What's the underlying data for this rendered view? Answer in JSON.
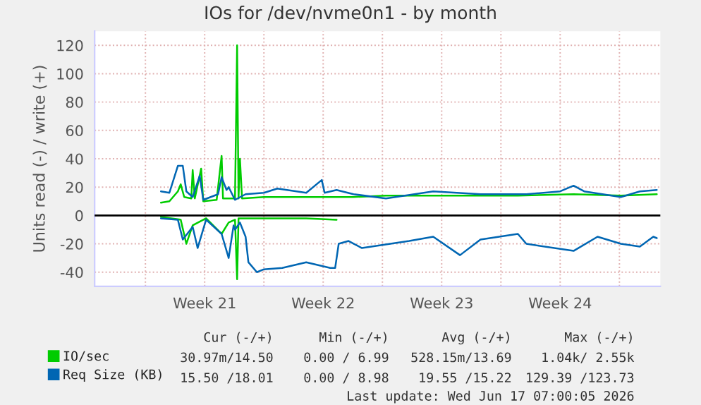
{
  "chart_data": {
    "type": "line",
    "title": "IOs for /dev/nvme0n1 - by month",
    "ylabel": "Units read (-) / write (+)",
    "xlim": [
      "2026-05-15",
      "2026-06-17T10:00"
    ],
    "xticks": [
      {
        "value": "2026-05-18",
        "label": null
      },
      {
        "value": "2026-05-21T12:00",
        "label": "Week 21"
      },
      {
        "value": "2026-05-25",
        "label": null
      },
      {
        "value": "2026-05-28T12:00",
        "label": "Week 22"
      },
      {
        "value": "2026-06-01",
        "label": null
      },
      {
        "value": "2026-06-04T12:00",
        "label": "Week 23"
      },
      {
        "value": "2026-06-08",
        "label": null
      },
      {
        "value": "2026-06-11T12:00",
        "label": "Week 24"
      },
      {
        "value": "2026-06-15",
        "label": null
      }
    ],
    "ylim": [
      -50,
      130
    ],
    "yticks": [
      -40,
      -20,
      0,
      20,
      40,
      60,
      80,
      100,
      120
    ],
    "grid": true,
    "legend": "bottom",
    "marker": "none",
    "line_style": "solid",
    "ref_lines": [
      {
        "axis": "y",
        "value": 0,
        "label": null,
        "color": "#000000"
      }
    ],
    "series": [
      {
        "name": "IO/sec",
        "color": "#00cc00",
        "x": [
          "2026-05-18T22:00",
          "2026-05-19T10:00",
          "2026-05-19T22:00",
          "2026-05-20T02:00",
          "2026-05-20T07:00",
          "2026-05-20T17:00",
          "2026-05-20T19:00",
          "2026-05-20T22:00",
          "2026-05-21T07:00",
          "2026-05-21T10:00",
          "2026-05-22T05:00",
          "2026-05-22T12:00",
          "2026-05-22T14:00",
          "2026-05-23T07:00",
          "2026-05-23T10:00",
          "2026-05-23T12:00",
          "2026-05-23T14:00",
          "2026-05-23T17:00",
          "2026-05-25T00:00",
          "2026-05-28T22:00",
          "2026-05-30T07:00",
          "2026-06-01T05:00",
          "2026-06-04T00:00",
          "2026-06-06T19:00",
          "2026-06-09T00:00",
          "2026-06-12T07:00",
          "2026-06-15T02:00",
          "2026-06-17T05:00"
        ],
        "values": [
          9,
          10,
          17,
          22,
          13,
          12,
          32,
          12,
          33,
          10,
          11,
          42,
          12,
          12,
          120,
          12,
          40,
          12,
          13,
          13,
          13,
          14,
          14,
          14,
          14,
          15,
          14,
          15
        ]
      },
      {
        "color": "#00cc00",
        "x": [
          "2026-05-18T22:00",
          "2026-05-20T02:00",
          "2026-05-20T10:00",
          "2026-05-20T19:00",
          "2026-05-21T14:00",
          "2026-05-22T12:00",
          "2026-05-22T22:00",
          "2026-05-23T07:00",
          "2026-05-23T10:00",
          "2026-05-23T12:00",
          "2026-05-25T00:00",
          "2026-05-27T12:00",
          "2026-05-29T07:00"
        ],
        "values": [
          -1,
          -3,
          -20,
          -7,
          -2,
          -13,
          -5,
          -3,
          -45,
          -2,
          -2,
          -2,
          -3
        ]
      },
      {
        "name": "Req Size (KB)",
        "color": "#0066b3",
        "x": [
          "2026-05-18T22:00",
          "2026-05-19T10:00",
          "2026-05-19T22:00",
          "2026-05-20T05:00",
          "2026-05-20T10:00",
          "2026-05-20T19:00",
          "2026-05-21T05:00",
          "2026-05-21T10:00",
          "2026-05-22T07:00",
          "2026-05-22T12:00",
          "2026-05-22T19:00",
          "2026-05-22T22:00",
          "2026-05-23T07:00",
          "2026-05-23T22:00",
          "2026-05-25T00:00",
          "2026-05-25T19:00",
          "2026-05-27T12:00",
          "2026-05-28T10:00",
          "2026-05-28T14:00",
          "2026-05-29T07:00",
          "2026-05-30T07:00",
          "2026-06-01T05:00",
          "2026-06-04T00:00",
          "2026-06-06T19:00",
          "2026-06-09T12:00",
          "2026-06-11T12:00",
          "2026-06-12T07:00",
          "2026-06-12T22:00",
          "2026-06-15T02:00",
          "2026-06-16T05:00",
          "2026-06-17T05:00"
        ],
        "values": [
          17,
          16,
          35,
          35,
          17,
          13,
          28,
          11,
          15,
          27,
          18,
          20,
          11,
          15,
          16,
          19,
          16,
          25,
          16,
          18,
          15,
          12,
          17,
          15,
          15,
          17,
          21,
          17,
          13,
          17,
          18
        ]
      },
      {
        "color": "#0066b3",
        "x": [
          "2026-05-18T22:00",
          "2026-05-19T22:00",
          "2026-05-20T05:00",
          "2026-05-20T19:00",
          "2026-05-21T02:00",
          "2026-05-21T14:00",
          "2026-05-22T12:00",
          "2026-05-22T22:00",
          "2026-05-23T05:00",
          "2026-05-23T07:00",
          "2026-05-23T14:00",
          "2026-05-23T22:00",
          "2026-05-24T02:00",
          "2026-05-24T14:00",
          "2026-05-25T00:00",
          "2026-05-26T02:00",
          "2026-05-27T12:00",
          "2026-05-28T22:00",
          "2026-05-29T05:00",
          "2026-05-29T10:00",
          "2026-05-30T00:00",
          "2026-05-30T19:00",
          "2026-06-02T14:00",
          "2026-06-04T00:00",
          "2026-06-05T14:00",
          "2026-06-06T19:00",
          "2026-06-09T00:00",
          "2026-06-09T12:00",
          "2026-06-12T07:00",
          "2026-06-13T17:00",
          "2026-06-15T02:00",
          "2026-06-16T05:00",
          "2026-06-17T00:00",
          "2026-06-17T05:00"
        ],
        "values": [
          -2,
          -3,
          -17,
          -8,
          -23,
          -3,
          -13,
          -30,
          -7,
          -10,
          -5,
          -15,
          -33,
          -40,
          -38,
          -37,
          -33,
          -37,
          -37,
          -20,
          -18,
          -23,
          -18,
          -15,
          -28,
          -17,
          -13,
          -20,
          -25,
          -15,
          -20,
          -22,
          -15,
          -16
        ]
      }
    ],
    "annotations": [
      "Cur (-/+)",
      "Min (-/+)",
      "Avg (-/+)",
      "Max (-/+)",
      "30.97m/14.50",
      "0.00 / 6.99",
      "528.15m/13.69",
      "1.04k/ 2.55k",
      "15.50 /18.01",
      "0.00 / 8.98",
      "19.55 /15.22",
      "129.39 /123.73",
      "Last update: Wed Jun 17 07:00:05 2026"
    ]
  }
}
